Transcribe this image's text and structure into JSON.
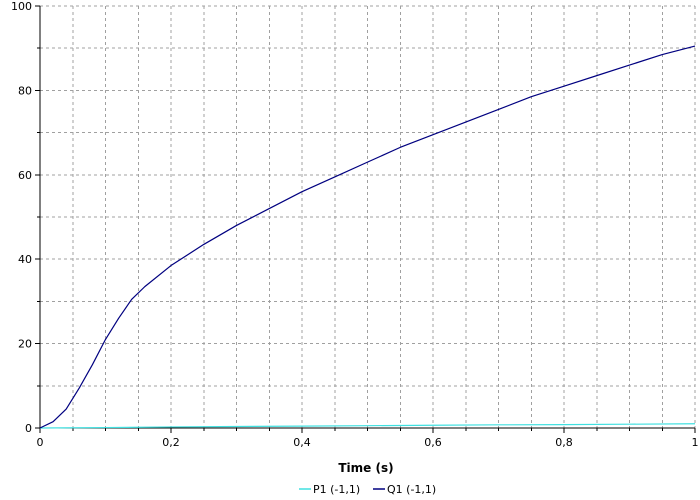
{
  "chart_data": {
    "type": "line",
    "title": "",
    "xlabel": "Time (s)",
    "ylabel": "",
    "xlim": [
      0,
      1
    ],
    "ylim": [
      0,
      100
    ],
    "grid": true,
    "legend_position": "bottom",
    "x_ticks": [
      {
        "value": 0,
        "label": "0"
      },
      {
        "value": 0.2,
        "label": "0,2"
      },
      {
        "value": 0.4,
        "label": "0,4"
      },
      {
        "value": 0.6,
        "label": "0,6"
      },
      {
        "value": 0.8,
        "label": "0,8"
      },
      {
        "value": 1,
        "label": "1"
      }
    ],
    "y_ticks": [
      {
        "value": 0,
        "label": "0"
      },
      {
        "value": 20,
        "label": "20"
      },
      {
        "value": 40,
        "label": "40"
      },
      {
        "value": 60,
        "label": "60"
      },
      {
        "value": 80,
        "label": "80"
      },
      {
        "value": 100,
        "label": "100"
      }
    ],
    "series": [
      {
        "name": "P1 (-1,1)",
        "color": "#40e0e0",
        "x": [
          0,
          0.1,
          0.2,
          0.3,
          0.4,
          0.5,
          0.6,
          0.7,
          0.8,
          0.9,
          1.0
        ],
        "y": [
          0,
          0.1,
          0.25,
          0.35,
          0.45,
          0.55,
          0.65,
          0.75,
          0.8,
          0.9,
          1.0
        ]
      },
      {
        "name": "Q1 (-1,1)",
        "color": "#000080",
        "x": [
          0,
          0.02,
          0.04,
          0.06,
          0.08,
          0.1,
          0.12,
          0.14,
          0.16,
          0.2,
          0.25,
          0.3,
          0.35,
          0.4,
          0.45,
          0.5,
          0.55,
          0.6,
          0.65,
          0.7,
          0.75,
          0.8,
          0.85,
          0.9,
          0.95,
          1.0
        ],
        "y": [
          0,
          1.5,
          4.5,
          9.5,
          15,
          21,
          26,
          30.5,
          33.5,
          38.5,
          43.5,
          48,
          52,
          56,
          59.5,
          63,
          66.5,
          69.5,
          72.5,
          75.5,
          78.5,
          81,
          83.5,
          86,
          88.5,
          90.5
        ]
      }
    ]
  }
}
